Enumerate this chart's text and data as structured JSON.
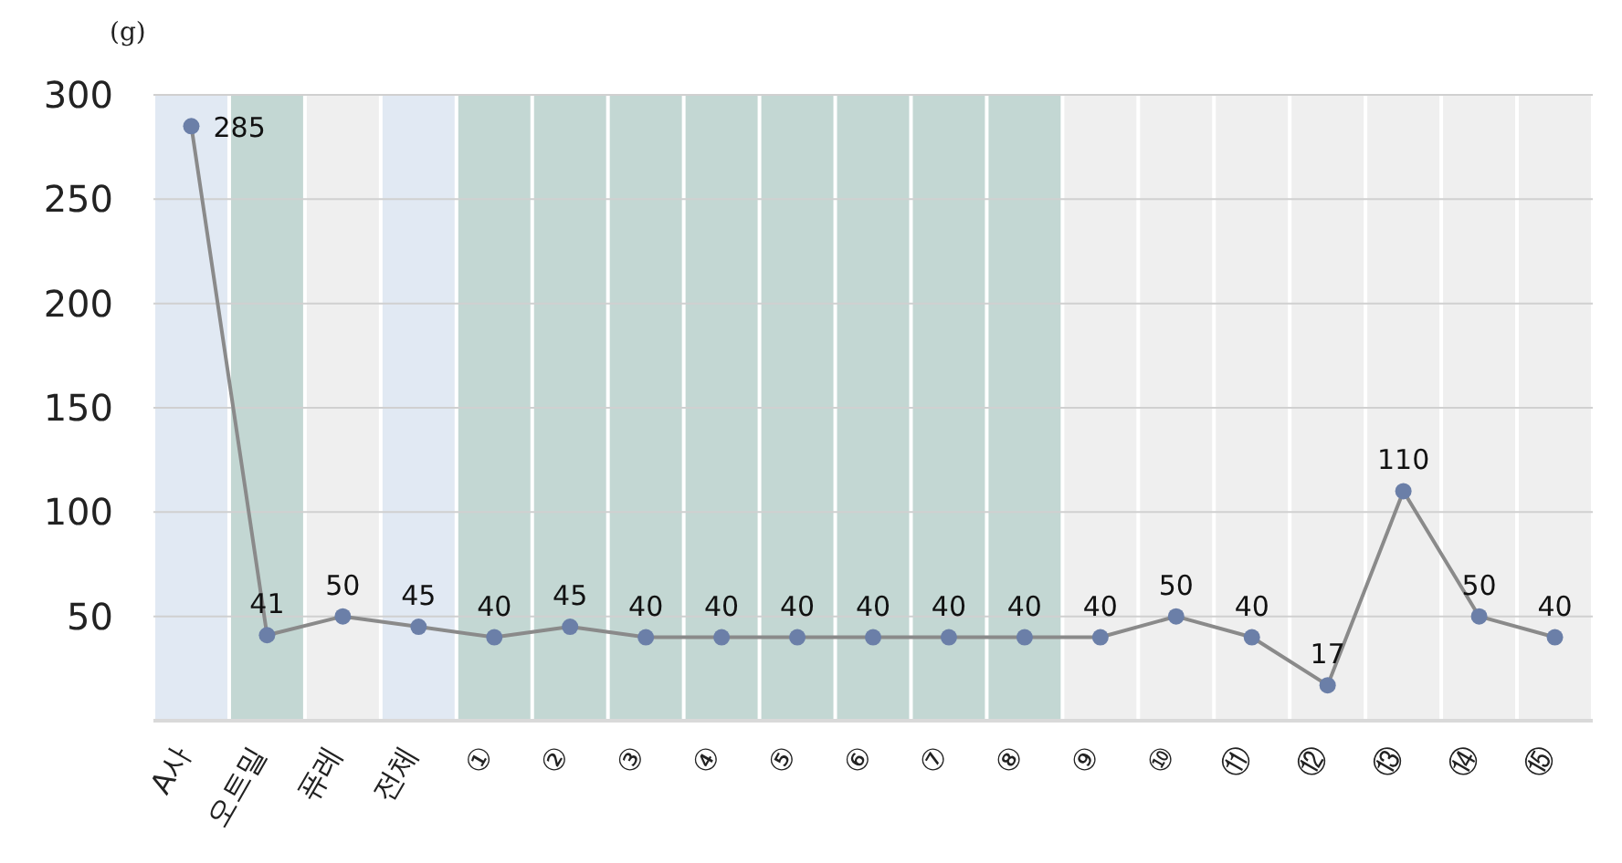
{
  "chart_data": {
    "type": "line",
    "ylabel": "(g)",
    "categories": [
      "A사",
      "오트밀",
      "퓨레",
      "전체",
      "①",
      "②",
      "③",
      "④",
      "⑤",
      "⑥",
      "⑦",
      "⑧",
      "⑨",
      "⑩",
      "⑪",
      "⑫",
      "⑬",
      "⑭",
      "⑮"
    ],
    "series": [
      {
        "color": "#6b7fa8",
        "values": [
          285,
          41,
          50,
          45,
          40,
          45,
          40,
          40,
          40,
          40,
          40,
          40,
          40,
          50,
          40,
          17,
          110,
          50,
          40
        ]
      }
    ],
    "ylim": [
      0,
      300
    ],
    "yticks": [
      50,
      100,
      150,
      200,
      250,
      300
    ],
    "grid": "y",
    "marker": "circle",
    "line_style": "solid",
    "data_labels": true,
    "bands": [
      {
        "axis": "x",
        "from": "A사",
        "to": "A사",
        "color": "#e1e9f3"
      },
      {
        "axis": "x",
        "from": "오트밀",
        "to": "오트밀",
        "color": "#c3d7d3"
      },
      {
        "axis": "x",
        "from": "퓨레",
        "to": "퓨레",
        "color": "#efefef"
      },
      {
        "axis": "x",
        "from": "전체",
        "to": "전체",
        "color": "#e1e9f3"
      },
      {
        "axis": "x",
        "from": "①",
        "to": "①",
        "color": "#c3d7d3"
      },
      {
        "axis": "x",
        "from": "②",
        "to": "②",
        "color": "#c3d7d3"
      },
      {
        "axis": "x",
        "from": "③",
        "to": "③",
        "color": "#c3d7d3"
      },
      {
        "axis": "x",
        "from": "④",
        "to": "④",
        "color": "#c3d7d3"
      },
      {
        "axis": "x",
        "from": "⑤",
        "to": "⑤",
        "color": "#c3d7d3"
      },
      {
        "axis": "x",
        "from": "⑥",
        "to": "⑥",
        "color": "#c3d7d3"
      },
      {
        "axis": "x",
        "from": "⑦",
        "to": "⑦",
        "color": "#c3d7d3"
      },
      {
        "axis": "x",
        "from": "⑧",
        "to": "⑧",
        "color": "#c3d7d3"
      },
      {
        "axis": "x",
        "from": "⑨",
        "to": "⑨",
        "color": "#efefef"
      },
      {
        "axis": "x",
        "from": "⑩",
        "to": "⑩",
        "color": "#efefef"
      },
      {
        "axis": "x",
        "from": "⑪",
        "to": "⑪",
        "color": "#efefef"
      },
      {
        "axis": "x",
        "from": "⑫",
        "to": "⑫",
        "color": "#efefef"
      },
      {
        "axis": "x",
        "from": "⑬",
        "to": "⑬",
        "color": "#efefef"
      },
      {
        "axis": "x",
        "from": "⑭",
        "to": "⑭",
        "color": "#efefef"
      },
      {
        "axis": "x",
        "from": "⑮",
        "to": "⑮",
        "color": "#efefef"
      }
    ]
  }
}
